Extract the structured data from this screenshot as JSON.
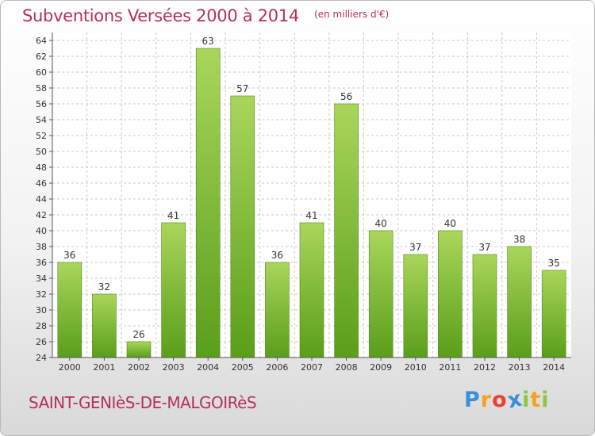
{
  "title": "Subventions Versées 2000 à 2014",
  "subtitle": "(en milliers d'€)",
  "commune": "SAINT-GENIèS-DE-MALGOIRèS",
  "logo": {
    "letters": [
      "P",
      "r",
      "o",
      "x",
      "i",
      "t",
      "i"
    ],
    "colors": [
      "#3b8fd8",
      "#f2a21f",
      "#e93f35",
      "#3b8fd8",
      "#8dc63f",
      "#f2a21f",
      "#8dc63f"
    ]
  },
  "colors": {
    "bar_top": "#a9d65b",
    "bar_bottom": "#5a9e1a",
    "bar_stroke": "#4f8a17",
    "grid": "#c8c8c8",
    "title": "#b5305b"
  },
  "chart_data": {
    "type": "bar",
    "categories": [
      "2000",
      "2001",
      "2002",
      "2003",
      "2004",
      "2005",
      "2006",
      "2007",
      "2008",
      "2009",
      "2010",
      "2011",
      "2012",
      "2013",
      "2014"
    ],
    "values": [
      36,
      32,
      26,
      41,
      63,
      57,
      36,
      41,
      56,
      40,
      37,
      40,
      37,
      38,
      35
    ],
    "title": "Subventions Versées 2000 à 2014",
    "subtitle": "(en milliers d'€)",
    "ylim": [
      24,
      64
    ],
    "yticks": [
      24,
      26,
      28,
      30,
      32,
      34,
      36,
      38,
      40,
      42,
      44,
      46,
      48,
      50,
      52,
      54,
      56,
      58,
      60,
      62,
      64
    ],
    "grid": true,
    "data_labels": true
  }
}
